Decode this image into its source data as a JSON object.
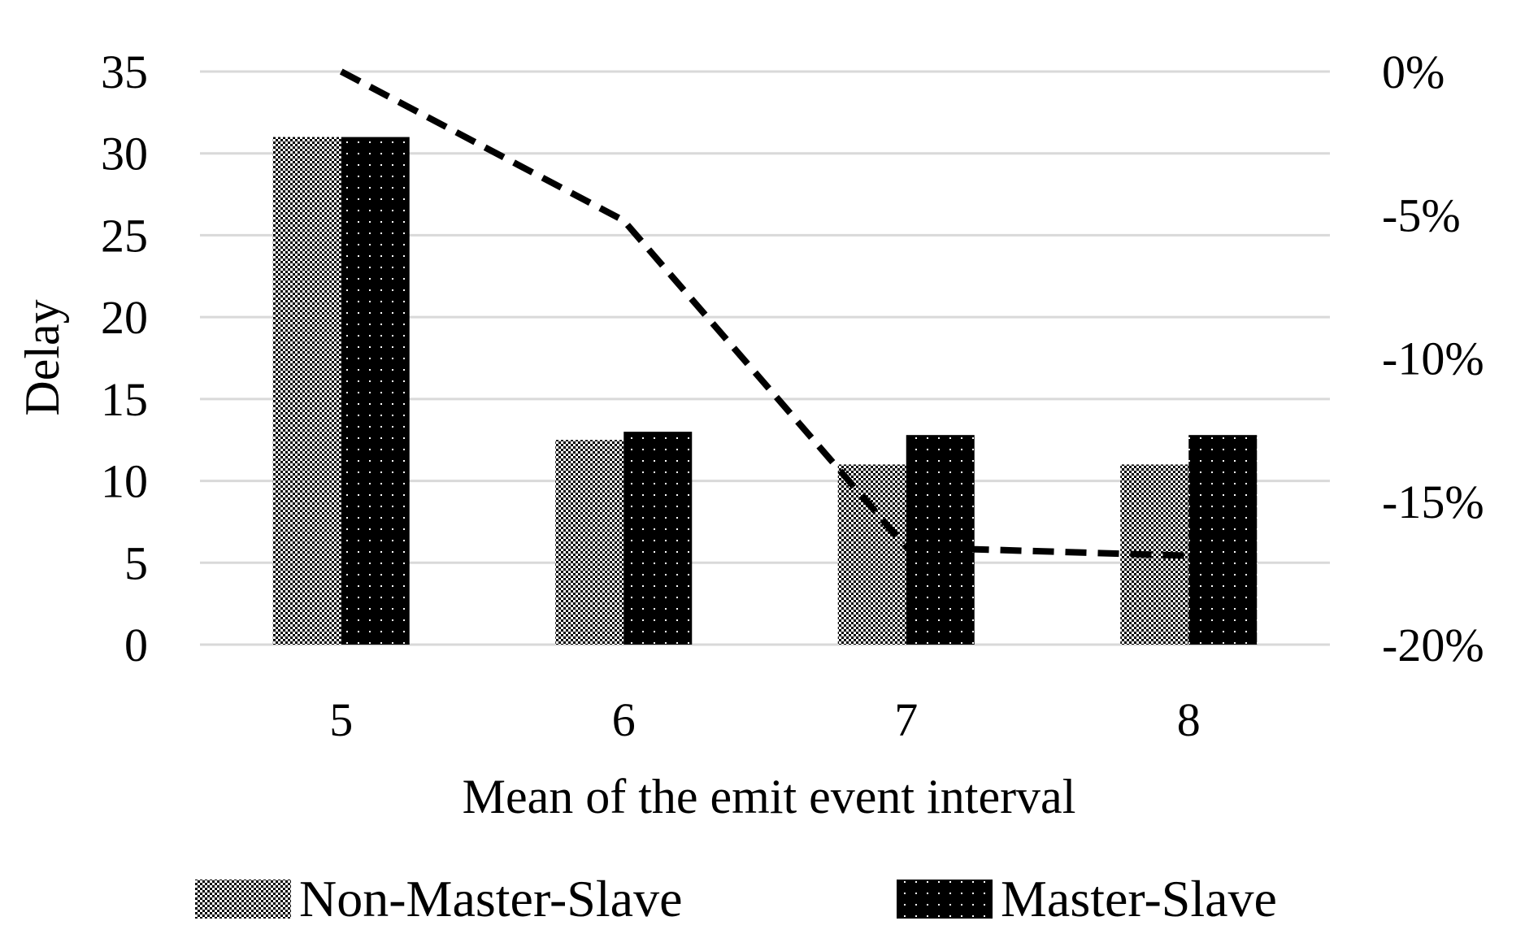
{
  "chart_data": {
    "type": "bar",
    "title": "",
    "xlabel": "Mean of the emit event interval",
    "ylabel": "Delay",
    "categories": [
      "5",
      "6",
      "7",
      "8"
    ],
    "series": [
      {
        "name": "Non-Master-Slave",
        "type": "bar",
        "axis": "left",
        "values": [
          31.0,
          12.5,
          11.0,
          11.0
        ]
      },
      {
        "name": "Master-Slave",
        "type": "bar",
        "axis": "left",
        "values": [
          31.0,
          13.0,
          12.8,
          12.8
        ]
      },
      {
        "type": "line",
        "axis": "right",
        "style": "dashed",
        "values": [
          0,
          -5.2,
          -16.6,
          -16.9
        ]
      }
    ],
    "ylim": [
      0,
      35
    ],
    "y_ticks": [
      "0",
      "5",
      "10",
      "15",
      "20",
      "25",
      "30",
      "35"
    ],
    "y2lim": [
      -20,
      0
    ],
    "y2_ticks": [
      "-20%",
      "-15%",
      "-10%",
      "-5%",
      "0%"
    ],
    "grid": true,
    "legend_position": "bottom",
    "colors": {
      "non_master_slave": "#8a8a8a",
      "master_slave": "#000000",
      "line": "#000000",
      "grid": "#d9d9d9"
    }
  }
}
